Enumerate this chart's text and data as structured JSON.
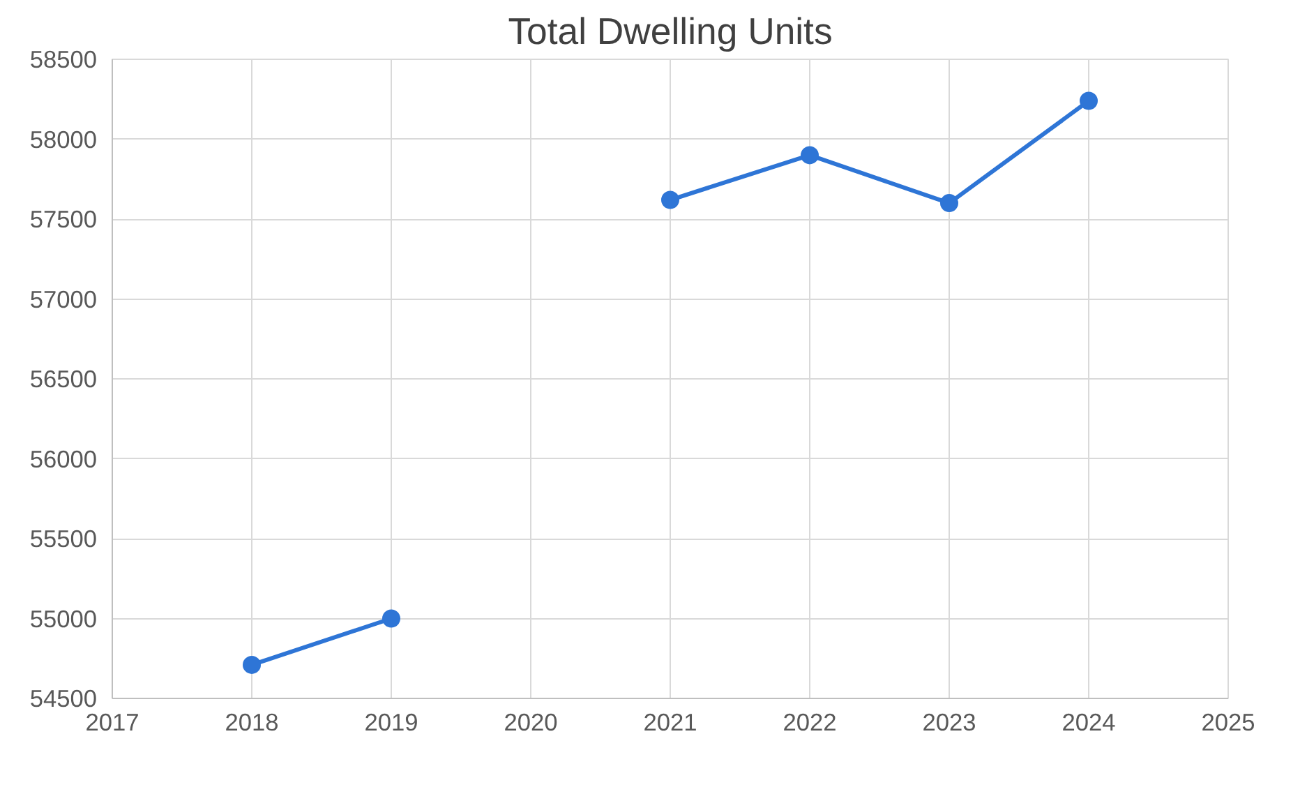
{
  "chart_data": {
    "type": "line",
    "title": "Total Dwelling Units",
    "x": [
      2018,
      2019,
      2020,
      2021,
      2022,
      2023,
      2024
    ],
    "series": [
      {
        "color": "#2e75d6",
        "values": [
          54710,
          55000,
          null,
          57620,
          57900,
          57600,
          58240
        ]
      }
    ],
    "xlim": [
      2017,
      2025
    ],
    "xticks": [
      2017,
      2018,
      2019,
      2020,
      2021,
      2022,
      2023,
      2024,
      2025
    ],
    "ylim": [
      54500,
      58500
    ],
    "yticks": [
      54500,
      55000,
      55500,
      56000,
      56500,
      57000,
      57500,
      58000,
      58500
    ],
    "grid": true,
    "marker": "circle",
    "line_style": "solid"
  }
}
